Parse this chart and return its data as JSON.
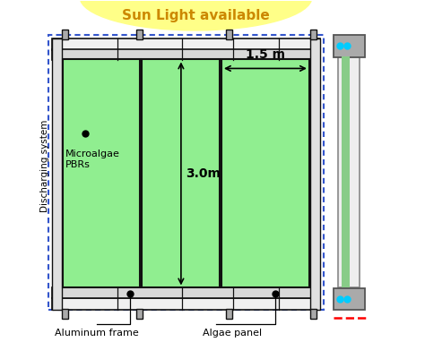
{
  "title": "Sun Light available",
  "title_color": "#CC8800",
  "bg_color": "#ffffff",
  "panel_green": "#90EE90",
  "panel_border": "#111111",
  "frame_fill": "#D8D8D8",
  "frame_border": "#555555",
  "dashed_border_color": "#3355CC",
  "label_aluminum": "Aluminum frame",
  "label_algae": "Algae panel",
  "label_microalgae": "Microalgae\nPBRs",
  "label_discharging": "Discharging system",
  "dim_30": "3.0m",
  "dim_15": "1.5 m",
  "sun_color": "#FFFF88",
  "tube_green": "#88CC88",
  "connector_fill": "#AAAAAA",
  "cyan_dot": "#00CCFF",
  "red_dash": "#FF0000"
}
